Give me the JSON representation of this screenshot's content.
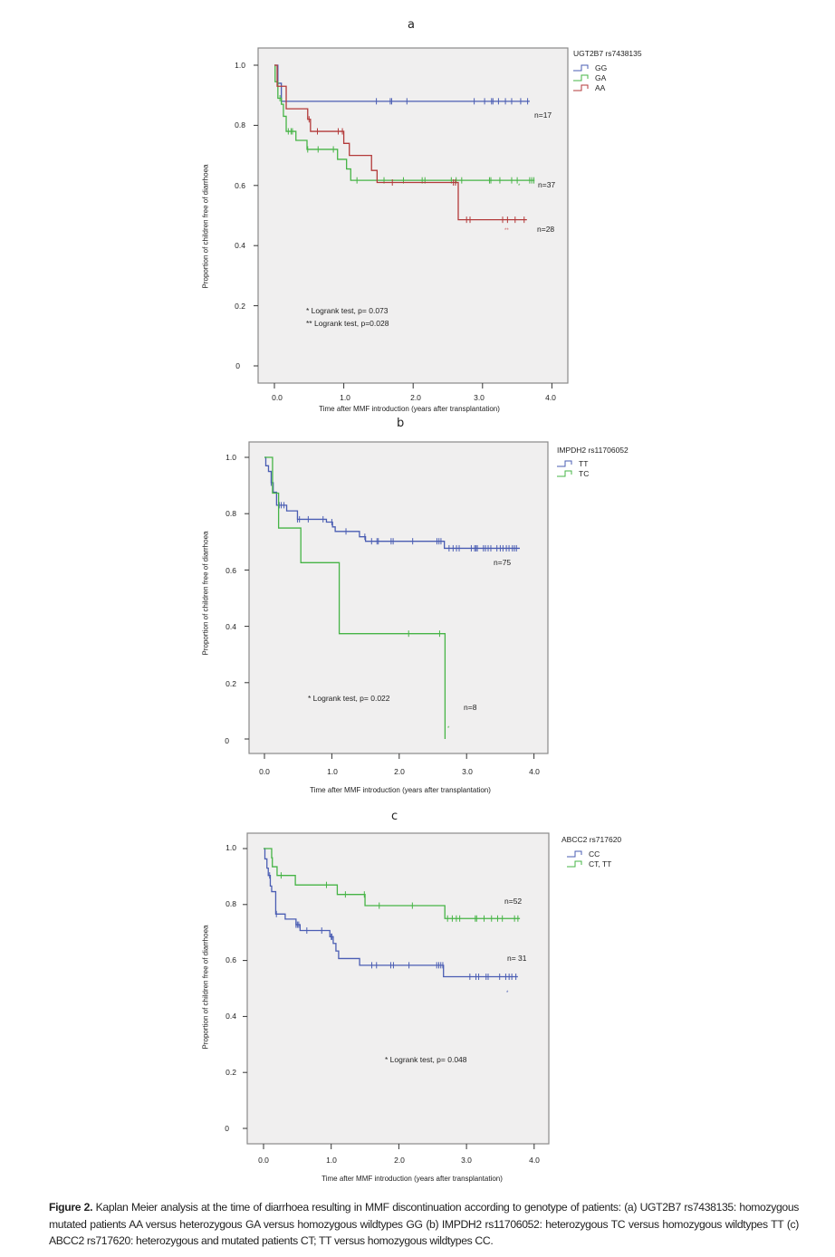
{
  "colors": {
    "blue": "#4a5db3",
    "green": "#46b446",
    "red": "#b33a3a",
    "plot_bg": "#f0efef"
  },
  "chart_data": [
    {
      "type": "line",
      "subtype": "kaplan-meier",
      "title": "a",
      "xlabel": "Time after MMF introduction (years after transplantation)",
      "ylabel": "Proportion of children free of diarrhoea",
      "xlim": [
        0,
        4
      ],
      "ylim": [
        0,
        1
      ],
      "xticks": [
        "0.0",
        "1.0",
        "2.0",
        "3.0",
        "4.0"
      ],
      "yticks": [
        "1.0",
        "0.8",
        "0.6",
        "0.4",
        "0.2",
        "0"
      ],
      "legend_title": "UGT2B7 rs7438135",
      "legend_placement": "right",
      "annotations": [
        "* Logrank test, p= 0.073",
        "** Logrank test, p=0.028"
      ],
      "series": [
        {
          "name": "GG",
          "color": "blue",
          "n_label": "n=17",
          "end": 3.68,
          "steps": [
            [
              0.05,
              0.94
            ],
            [
              0.1,
              0.88
            ]
          ],
          "censors": [
            1.47,
            1.67,
            1.69,
            1.91,
            2.88,
            3.03,
            3.13,
            3.15,
            3.23,
            3.33,
            3.42,
            3.55,
            3.65
          ]
        },
        {
          "name": "GA",
          "color": "green",
          "n_label": "n=37",
          "marker": "*",
          "end": 3.75,
          "steps": [
            [
              0.01,
              0.945
            ],
            [
              0.05,
              0.89
            ],
            [
              0.1,
              0.87
            ],
            [
              0.13,
              0.83
            ],
            [
              0.17,
              0.78
            ],
            [
              0.31,
              0.75
            ],
            [
              0.47,
              0.72
            ],
            [
              0.91,
              0.687
            ],
            [
              1.04,
              0.655
            ],
            [
              1.1,
              0.617
            ]
          ],
          "censors": [
            0.08,
            0.2,
            0.24,
            0.26,
            0.48,
            0.63,
            0.85,
            1.19,
            1.58,
            1.86,
            2.13,
            2.17,
            2.55,
            2.62,
            2.7,
            3.1,
            3.12,
            3.25,
            3.42,
            3.5,
            3.68,
            3.71,
            3.74
          ]
        },
        {
          "name": "AA",
          "color": "red",
          "n_label": "n=28",
          "marker": "**",
          "end": 3.64,
          "steps": [
            [
              0.04,
              0.93
            ],
            [
              0.17,
              0.855
            ],
            [
              0.48,
              0.82
            ],
            [
              0.52,
              0.78
            ],
            [
              1.0,
              0.74
            ],
            [
              1.08,
              0.7
            ],
            [
              1.4,
              0.65
            ],
            [
              1.48,
              0.61
            ],
            [
              2.65,
              0.486
            ]
          ],
          "censors": [
            0.5,
            0.62,
            0.92,
            0.98,
            1.7,
            2.58,
            2.61,
            2.77,
            2.82,
            3.29,
            3.36,
            3.47,
            3.6
          ]
        }
      ]
    },
    {
      "type": "line",
      "subtype": "kaplan-meier",
      "title": "b",
      "xlabel": "Time after MMF introduction (years after transplantation)",
      "ylabel": "Proportion of children free of diarrhoea",
      "xlim": [
        0,
        4
      ],
      "ylim": [
        0,
        1
      ],
      "xticks": [
        "0.0",
        "1.0",
        "2.0",
        "3.0",
        "4.0"
      ],
      "yticks": [
        "1.0",
        "0.8",
        "0.6",
        "0.4",
        "0.2",
        "0"
      ],
      "legend_title": "IMPDH2 rs11706052",
      "legend_placement": "right",
      "annotations": [
        "* Logrank test, p= 0.022"
      ],
      "series": [
        {
          "name": "TT",
          "color": "blue",
          "n_label": "n=75",
          "end": 3.79,
          "steps": [
            [
              0.02,
              0.97
            ],
            [
              0.06,
              0.95
            ],
            [
              0.1,
              0.91
            ],
            [
              0.13,
              0.876
            ],
            [
              0.18,
              0.83
            ],
            [
              0.33,
              0.81
            ],
            [
              0.49,
              0.78
            ],
            [
              0.92,
              0.77
            ],
            [
              1.01,
              0.753
            ],
            [
              1.05,
              0.737
            ],
            [
              1.41,
              0.718
            ],
            [
              1.5,
              0.702
            ],
            [
              2.67,
              0.677
            ]
          ],
          "censors": [
            0.1,
            0.22,
            0.25,
            0.29,
            0.49,
            0.52,
            0.65,
            0.87,
            1.0,
            1.21,
            1.49,
            1.59,
            1.67,
            1.69,
            1.88,
            1.91,
            2.2,
            2.56,
            2.59,
            2.62,
            2.74,
            2.8,
            2.85,
            2.89,
            3.07,
            3.12,
            3.14,
            3.16,
            3.25,
            3.28,
            3.32,
            3.36,
            3.45,
            3.5,
            3.54,
            3.59,
            3.63,
            3.68,
            3.71,
            3.74
          ]
        },
        {
          "name": "TC",
          "color": "green",
          "n_label": "n=8",
          "marker": "*",
          "end": 2.68,
          "steps": [
            [
              0.12,
              0.873
            ],
            [
              0.21,
              0.749
            ],
            [
              0.54,
              0.626
            ],
            [
              1.11,
              0.374
            ],
            [
              2.68,
              0.0
            ]
          ],
          "censors": [
            2.14,
            2.6
          ]
        }
      ]
    },
    {
      "type": "line",
      "subtype": "kaplan-meier",
      "title": "c",
      "xlabel": "Time after MMF introduction (years after transplantation)",
      "ylabel": "Proportion of children free of diarrhoea",
      "xlim": [
        0,
        4
      ],
      "ylim": [
        0,
        1
      ],
      "xticks": [
        "0.0",
        "1.0",
        "2.0",
        "3.0",
        "4.0"
      ],
      "yticks": [
        "1.0",
        "0.8",
        "0.6",
        "0.4",
        "0.2",
        "0"
      ],
      "legend_title": "ABCC2 rs717620",
      "legend_placement": "right",
      "annotations": [
        "* Logrank test, p= 0.048"
      ],
      "series": [
        {
          "name": "CC",
          "color": "blue",
          "n_label": "n= 31",
          "marker": "*",
          "end": 3.76,
          "steps": [
            [
              0.02,
              0.963
            ],
            [
              0.05,
              0.93
            ],
            [
              0.07,
              0.904
            ],
            [
              0.1,
              0.866
            ],
            [
              0.12,
              0.846
            ],
            [
              0.18,
              0.766
            ],
            [
              0.32,
              0.748
            ],
            [
              0.48,
              0.728
            ],
            [
              0.54,
              0.707
            ],
            [
              0.98,
              0.685
            ],
            [
              1.03,
              0.661
            ],
            [
              1.07,
              0.634
            ],
            [
              1.11,
              0.607
            ],
            [
              1.42,
              0.583
            ],
            [
              2.66,
              0.542
            ]
          ],
          "censors": [
            0.09,
            0.19,
            0.48,
            0.5,
            0.52,
            0.64,
            0.86,
            1.0,
            1.01,
            1.6,
            1.67,
            1.88,
            1.92,
            2.15,
            2.56,
            2.59,
            2.62,
            2.65,
            3.05,
            3.14,
            3.18,
            3.29,
            3.32,
            3.49,
            3.58,
            3.63,
            3.67,
            3.73
          ]
        },
        {
          "name": "CT, TT",
          "color": "green",
          "n_label": "n=52",
          "end": 3.79,
          "steps": [
            [
              0.12,
              0.967
            ],
            [
              0.13,
              0.935
            ],
            [
              0.2,
              0.904
            ],
            [
              0.47,
              0.87
            ],
            [
              1.09,
              0.836
            ],
            [
              1.5,
              0.796
            ],
            [
              2.68,
              0.75
            ]
          ],
          "censors": [
            0.26,
            0.93,
            1.21,
            1.49,
            1.71,
            2.2,
            2.72,
            2.79,
            2.85,
            2.9,
            3.13,
            3.15,
            3.26,
            3.37,
            3.46,
            3.53,
            3.71,
            3.76
          ]
        }
      ]
    }
  ],
  "caption": {
    "label": "Figure 2.",
    "text": " Kaplan Meier analysis at the time of diarrhoea resulting in MMF discontinuation according to genotype of patients: (a) UGT2B7 rs7438135: homozygous mutated patients AA versus heterozygous GA versus homozygous wildtypes GG (b) IMPDH2 rs11706052: heterozygous TC versus homozygous wildtypes TT (c) ABCC2 rs717620: heterozygous and mutated patients CT; TT versus homozygous wildtypes CC."
  }
}
